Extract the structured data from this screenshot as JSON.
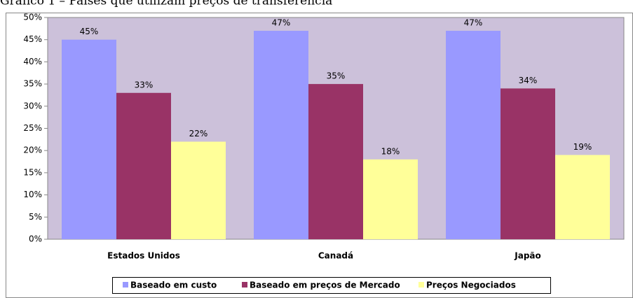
{
  "chart_data": {
    "type": "bar",
    "title": "Gráfico 1 – Países que utilizam preços de transferência",
    "categories": [
      "Estados Unidos",
      "Canadá",
      "Japão"
    ],
    "series": [
      {
        "name": "Baseado em custo",
        "color": "#9999ff",
        "values": [
          45,
          47,
          47
        ],
        "value_labels": [
          "45%",
          "47%",
          "47%"
        ]
      },
      {
        "name": "Baseado em preços de Mercado",
        "color": "#993366",
        "values": [
          33,
          35,
          34
        ],
        "value_labels": [
          "33%",
          "35%",
          "34%"
        ]
      },
      {
        "name": "Preços Negociados",
        "color": "#ffff99",
        "values": [
          22,
          18,
          19
        ],
        "value_labels": [
          "22%",
          "18%",
          "19%"
        ]
      }
    ],
    "ylim": [
      0,
      50
    ],
    "yticks": [
      {
        "value": 0,
        "label": "0%"
      },
      {
        "value": 5,
        "label": "5%"
      },
      {
        "value": 10,
        "label": "10%"
      },
      {
        "value": 15,
        "label": "15%"
      },
      {
        "value": 20,
        "label": "20%"
      },
      {
        "value": 25,
        "label": "25%"
      },
      {
        "value": 30,
        "label": "30%"
      },
      {
        "value": 35,
        "label": "35%"
      },
      {
        "value": 40,
        "label": "40%"
      },
      {
        "value": 45,
        "label": "45%"
      },
      {
        "value": 50,
        "label": "50%"
      }
    ],
    "legend": "bottom"
  }
}
